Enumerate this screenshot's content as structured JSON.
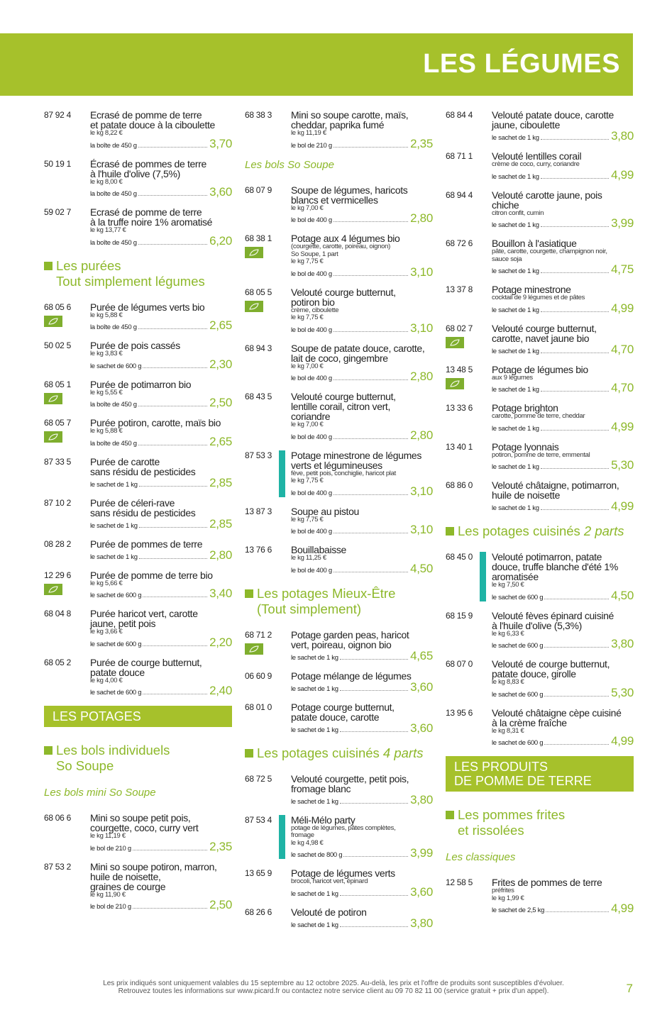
{
  "header": {
    "title": "LES LÉGUMES"
  },
  "columns": [
    [
      {
        "kind": "item",
        "code": "87 92 4",
        "name": [
          "Ecrasé de pomme de terre",
          "et patate douce à la ciboulette"
        ],
        "details": [
          "le kg 8,22 €"
        ],
        "unit": "la boîte de 450 g",
        "price": "3,70"
      },
      {
        "kind": "item",
        "code": "50 19 1",
        "name": [
          "Écrasé de pommes de terre",
          "à l'huile d'olive (7,5%)"
        ],
        "details": [
          "le kg 8,00 €"
        ],
        "unit": "la boîte de 450 g",
        "price": "3,60"
      },
      {
        "kind": "item",
        "code": "59 02 7",
        "name": [
          "Ecrasé de pomme de terre",
          "à la truffe noire 1% aromatisé"
        ],
        "details": [
          "le kg 13,77 €"
        ],
        "unit": "la boîte de 450 g",
        "price": "6,20"
      },
      {
        "kind": "section",
        "text": [
          "Les purées",
          "Tout simplement légumes"
        ]
      },
      {
        "kind": "item",
        "code": "68 05 6",
        "bio": true,
        "name": [
          "Purée de légumes verts bio"
        ],
        "details": [
          "le kg 5,88 €"
        ],
        "unit": "la boîte de 450 g",
        "price": "2,65"
      },
      {
        "kind": "item",
        "code": "50 02 5",
        "name": [
          "Purée de pois cassés"
        ],
        "details": [
          "le kg 3,83 €"
        ],
        "unit": "le sachet de 600 g",
        "price": "2,30"
      },
      {
        "kind": "item",
        "code": "68 05 1",
        "bio": true,
        "name": [
          "Purée de potimarron bio"
        ],
        "details": [
          "le kg 5,55 €"
        ],
        "unit": "la boîte de 450 g",
        "price": "2,50"
      },
      {
        "kind": "item",
        "code": "68 05 7",
        "bio": true,
        "name": [
          "Purée potiron, carotte, maïs bio"
        ],
        "details": [
          "le kg 5,88 €"
        ],
        "unit": "la boîte de 450 g",
        "price": "2,65"
      },
      {
        "kind": "item",
        "code": "87 33 5",
        "name": [
          "Purée de carotte",
          "sans résidu de pesticides"
        ],
        "details": [],
        "unit": "le sachet de 1 kg",
        "price": "2,85"
      },
      {
        "kind": "item",
        "code": "87 10 2",
        "name": [
          "Purée de céleri-rave",
          "sans résidu de pesticides"
        ],
        "details": [],
        "unit": "le sachet de 1 kg",
        "price": "2,85"
      },
      {
        "kind": "item",
        "code": "08 28 2",
        "name": [
          "Purée de pommes de terre"
        ],
        "details": [],
        "unit": "le sachet de 1 kg",
        "price": "2,80"
      },
      {
        "kind": "item",
        "code": "12 29 6",
        "bio": true,
        "name": [
          "Purée de pomme de terre bio"
        ],
        "details": [
          "le kg 5,66 €"
        ],
        "unit": "le sachet de 600 g",
        "price": "3,40"
      },
      {
        "kind": "item",
        "code": "68 04 8",
        "name": [
          "Purée haricot vert, carotte",
          "jaune, petit pois"
        ],
        "details": [
          "le kg 3,66 €"
        ],
        "unit": "le sachet de 600 g",
        "price": "2,20"
      },
      {
        "kind": "item",
        "code": "68 05 2",
        "name": [
          "Purée de courge butternut,",
          "patate douce"
        ],
        "details": [
          "le kg 4,00 €"
        ],
        "unit": "le sachet de 600 g",
        "price": "2,40"
      },
      {
        "kind": "banner",
        "text": [
          "LES POTAGES"
        ]
      },
      {
        "kind": "section",
        "text": [
          "Les bols individuels",
          "So Soupe"
        ]
      },
      {
        "kind": "subsection",
        "text": "Les bols mini So Soupe"
      },
      {
        "kind": "item",
        "code": "68 06 6",
        "name": [
          "Mini so soupe petit pois,",
          "courgette, coco, curry vert"
        ],
        "details": [
          "le kg 11,19 €"
        ],
        "unit": "le bol de 210 g",
        "price": "2,35"
      },
      {
        "kind": "item",
        "code": "87 53 2",
        "name": [
          "Mini so soupe potiron, marron,",
          "huile de noisette,",
          "graines de courge"
        ],
        "details": [
          "le kg 11,90 €"
        ],
        "unit": "le bol de 210 g",
        "price": "2,50"
      }
    ],
    [
      {
        "kind": "item",
        "code": "68 38 3",
        "name": [
          "Mini so soupe carotte, maïs,",
          "cheddar, paprika fumé"
        ],
        "details": [
          "le kg 11,19 €"
        ],
        "unit": "le bol de 210 g",
        "price": "2,35"
      },
      {
        "kind": "subsection",
        "text": "Les bols So Soupe"
      },
      {
        "kind": "item",
        "code": "68 07 9",
        "name": [
          "Soupe de légumes, haricots",
          "blancs et vermicelles"
        ],
        "details": [
          "le kg 7,00 €"
        ],
        "unit": "le bol de 400 g",
        "price": "2,80"
      },
      {
        "kind": "item",
        "code": "68 38 1",
        "bio": true,
        "name": [
          "Potage aux 4 légumes bio"
        ],
        "details": [
          "(courgette, carotte, poireau, oignon)",
          "So Soupe, 1 part",
          "le kg 7,75 €"
        ],
        "unit": "le bol de 400 g",
        "price": "3,10"
      },
      {
        "kind": "item",
        "code": "68 05 5",
        "bio": true,
        "name": [
          "Velouté courge butternut,",
          "potiron bio"
        ],
        "details": [
          "crème, ciboulette",
          "le kg 7,75 €"
        ],
        "unit": "le bol de 400 g",
        "price": "3,10"
      },
      {
        "kind": "item",
        "code": "68 94 3",
        "name": [
          "Soupe de patate douce, carotte,",
          "lait de coco, gingembre"
        ],
        "details": [
          "le kg 7,00 €"
        ],
        "unit": "le bol de 400 g",
        "price": "2,80"
      },
      {
        "kind": "item",
        "code": "68 43 5",
        "name": [
          "Velouté courge butternut,",
          "lentille corail, citron vert,",
          "coriandre"
        ],
        "details": [
          "le kg 7,00 €"
        ],
        "unit": "le bol de 400 g",
        "price": "2,80"
      },
      {
        "kind": "item",
        "code": "87 53 3",
        "highlight": true,
        "name": [
          "Potage minestrone de légumes",
          "verts et légumineuses"
        ],
        "details": [
          "fève, petit pois, conchiglie, haricot plat",
          "le kg 7,75 €"
        ],
        "unit": "le bol de 400 g",
        "price": "3,10"
      },
      {
        "kind": "item",
        "code": "13 87 3",
        "name": [
          "Soupe au pistou"
        ],
        "details": [
          "le kg 7,75 €"
        ],
        "unit": "le bol de 400 g",
        "price": "3,10"
      },
      {
        "kind": "item",
        "code": "13 76 6",
        "name": [
          "Bouillabaisse"
        ],
        "details": [
          "le kg 11,25 €"
        ],
        "unit": "le bol de 400 g",
        "price": "4,50"
      },
      {
        "kind": "section",
        "text": [
          "Les potages Mieux-Être",
          "(Tout simplement)"
        ]
      },
      {
        "kind": "item",
        "code": "68 71 2",
        "bio": true,
        "name": [
          "Potage garden peas, haricot",
          "vert, poireau, oignon bio"
        ],
        "details": [],
        "unit": "le sachet de 1 kg",
        "price": "4,65"
      },
      {
        "kind": "item",
        "code": "06 60 9",
        "name": [
          "Potage mélange de légumes"
        ],
        "details": [],
        "unit": "le sachet de 1 kg",
        "price": "3,60"
      },
      {
        "kind": "item",
        "code": "68 01 0",
        "name": [
          "Potage courge butternut,",
          "patate douce, carotte"
        ],
        "details": [],
        "unit": "le sachet de 1 kg",
        "price": "3,60"
      },
      {
        "kind": "section",
        "text": [
          "Les potages cuisinés"
        ],
        "em": "4 parts"
      },
      {
        "kind": "item",
        "code": "68 72 5",
        "name": [
          "Velouté courgette, petit pois,",
          "fromage blanc"
        ],
        "details": [],
        "unit": "le sachet de 1 kg",
        "price": "3,80"
      },
      {
        "kind": "item",
        "code": "87 53 4",
        "highlight": true,
        "name": [
          "Méli-Mélo party"
        ],
        "details": [
          "potage de légumes, pâtes complètes,",
          "fromage",
          "le kg 4,98 €"
        ],
        "unit": "le sachet de 800 g",
        "price": "3,99"
      },
      {
        "kind": "item",
        "code": "13 65 9",
        "name": [
          "Potage de légumes verts"
        ],
        "details": [
          "brocoli, haricot vert, épinard"
        ],
        "unit": "le sachet de 1 kg",
        "price": "3,60"
      },
      {
        "kind": "item",
        "code": "68 26 6",
        "name": [
          "Velouté de potiron"
        ],
        "details": [],
        "unit": "le sachet de 1 kg",
        "price": "3,80"
      }
    ],
    [
      {
        "kind": "item",
        "code": "68 84 4",
        "name": [
          "Velouté patate douce, carotte",
          "jaune, ciboulette"
        ],
        "details": [],
        "unit": "le sachet de 1 kg",
        "price": "3,80"
      },
      {
        "kind": "item",
        "code": "68 71 1",
        "name": [
          "Velouté lentilles corail"
        ],
        "details": [
          "crème de coco, curry, coriandre"
        ],
        "unit": "le sachet de 1 kg",
        "price": "4,99"
      },
      {
        "kind": "item",
        "code": "68 94 4",
        "name": [
          "Velouté carotte jaune, pois",
          "chiche"
        ],
        "details": [
          "citron confit, cumin"
        ],
        "unit": "le sachet de 1 kg",
        "price": "3,99"
      },
      {
        "kind": "item",
        "code": "68 72 6",
        "name": [
          "Bouillon à l'asiatique"
        ],
        "details": [
          "pâte, carotte, courgette, champignon noir,",
          "sauce soja"
        ],
        "unit": "le sachet de 1 kg",
        "price": "4,75"
      },
      {
        "kind": "item",
        "code": "13 37 8",
        "name": [
          "Potage minestrone"
        ],
        "details": [
          "cocktail de 9 légumes et de pâtes"
        ],
        "unit": "le sachet de 1 kg",
        "price": "4,99"
      },
      {
        "kind": "item",
        "code": "68 02 7",
        "bio": true,
        "name": [
          "Velouté courge butternut,",
          "carotte, navet jaune bio"
        ],
        "details": [],
        "unit": "le sachet de 1 kg",
        "price": "4,70"
      },
      {
        "kind": "item",
        "code": "13 48 5",
        "bio": true,
        "name": [
          "Potage de légumes bio"
        ],
        "details": [
          "aux 9 légumes"
        ],
        "unit": "le sachet de 1 kg",
        "price": "4,70"
      },
      {
        "kind": "item",
        "code": "13 33 6",
        "name": [
          "Potage brighton"
        ],
        "details": [
          "carotte, pomme de terre, cheddar"
        ],
        "unit": "le sachet de 1 kg",
        "price": "4,99"
      },
      {
        "kind": "item",
        "code": "13 40 1",
        "name": [
          "Potage lyonnais"
        ],
        "details": [
          "potiron, pomme de terre, emmental"
        ],
        "unit": "le sachet de 1 kg",
        "price": "5,30"
      },
      {
        "kind": "item",
        "code": "68 86 0",
        "name": [
          "Velouté châtaigne, potimarron,",
          "huile de noisette"
        ],
        "details": [],
        "unit": "le sachet de 1 kg",
        "price": "4,99"
      },
      {
        "kind": "section",
        "text": [
          "Les potages cuisinés"
        ],
        "em": "2 parts"
      },
      {
        "kind": "item",
        "code": "68 45 0",
        "highlight": true,
        "name": [
          "Velouté potimarron, patate",
          "douce, truffe blanche d'été 1%",
          "aromatisée"
        ],
        "details": [
          "le kg 7,50 €"
        ],
        "unit": "le sachet de 600 g",
        "price": "4,50"
      },
      {
        "kind": "item",
        "code": "68 15 9",
        "name": [
          "Velouté fèves épinard cuisiné",
          "à l'huile d'olive (5,3%)"
        ],
        "details": [
          "le kg 6,33 €"
        ],
        "unit": "le sachet de 600 g",
        "price": "3,80"
      },
      {
        "kind": "item",
        "code": "68 07 0",
        "name": [
          "Velouté de courge butternut,",
          "patate douce, girolle"
        ],
        "details": [
          "le kg 8,83 €"
        ],
        "unit": "le sachet de 600 g",
        "price": "5,30"
      },
      {
        "kind": "item",
        "code": "13 95 6",
        "name": [
          "Velouté châtaigne cèpe cuisiné",
          "à la crème fraîche"
        ],
        "details": [
          "le kg 8,31 €"
        ],
        "unit": "le sachet de 600 g",
        "price": "4,99"
      },
      {
        "kind": "banner",
        "text": [
          "LES PRODUITS",
          "DE POMME DE TERRE"
        ]
      },
      {
        "kind": "section",
        "text": [
          "Les pommes frites",
          "et rissolées"
        ]
      },
      {
        "kind": "subsection",
        "text": "Les classiques"
      },
      {
        "kind": "item",
        "code": "12 58 5",
        "name": [
          "Frites de pommes de terre"
        ],
        "details": [
          "préfrites",
          "le kg 1,99 €"
        ],
        "unit": "le sachet de 2,5 kg",
        "price": "4,99"
      }
    ]
  ],
  "footer": {
    "lines": [
      "Les prix indiqués sont uniquement valables du 15 septembre au 12 octobre 2025. Au-delà, les prix et l'offre de produits sont susceptibles d'évoluer.",
      "Retrouvez toutes les informations sur www.picard.fr ou contactez notre service client au 09 70 82 11 00 (service gratuit + prix d'un appel)."
    ],
    "page": "7"
  }
}
